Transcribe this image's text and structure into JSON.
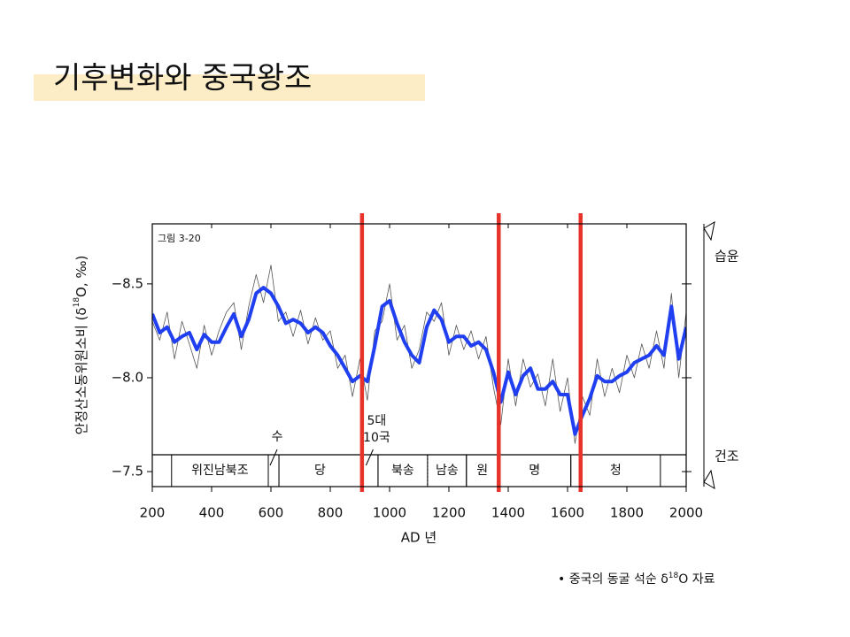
{
  "slide_title": "기후변화와 중국왕조",
  "chart_data": {
    "type": "line",
    "figure_label": "그림 3-20",
    "y_label": [
      "안정산소동위원소비 (δ",
      "18",
      "O, ‰)"
    ],
    "x_label": "AD 년",
    "x": [
      200,
      225,
      250,
      275,
      300,
      325,
      350,
      375,
      400,
      425,
      450,
      475,
      500,
      525,
      550,
      575,
      600,
      625,
      650,
      675,
      700,
      725,
      750,
      775,
      800,
      825,
      850,
      875,
      900,
      925,
      950,
      975,
      1000,
      1025,
      1050,
      1075,
      1100,
      1125,
      1150,
      1175,
      1200,
      1225,
      1250,
      1275,
      1300,
      1325,
      1350,
      1375,
      1400,
      1425,
      1450,
      1475,
      1500,
      1525,
      1550,
      1575,
      1600,
      1625,
      1650,
      1675,
      1700,
      1725,
      1750,
      1775,
      1800,
      1825,
      1850,
      1875,
      1900,
      1925,
      1950,
      1975,
      2000
    ],
    "series": [
      {
        "color": "#555555",
        "width": 0.8,
        "values": [
          -8.3,
          -8.2,
          -8.35,
          -8.1,
          -8.3,
          -8.18,
          -8.05,
          -8.28,
          -8.12,
          -8.25,
          -8.35,
          -8.4,
          -8.15,
          -8.38,
          -8.55,
          -8.4,
          -8.6,
          -8.3,
          -8.35,
          -8.22,
          -8.36,
          -8.18,
          -8.32,
          -8.2,
          -8.25,
          -8.05,
          -8.12,
          -7.9,
          -8.1,
          -7.88,
          -8.25,
          -8.3,
          -8.5,
          -8.2,
          -8.28,
          -8.05,
          -8.15,
          -8.35,
          -8.3,
          -8.4,
          -8.12,
          -8.28,
          -8.15,
          -8.25,
          -8.1,
          -8.22,
          -7.95,
          -7.75,
          -8.1,
          -7.85,
          -8.1,
          -7.95,
          -8.02,
          -7.85,
          -8.1,
          -7.82,
          -8.0,
          -7.65,
          -7.9,
          -7.8,
          -8.1,
          -7.9,
          -8.05,
          -7.92,
          -8.12,
          -8.0,
          -8.18,
          -8.05,
          -8.25,
          -8.05,
          -8.45,
          -8.0,
          -8.35
        ]
      },
      {
        "color": "#1f3ff0",
        "width": 4,
        "values": [
          -8.34,
          -8.24,
          -8.27,
          -8.19,
          -8.22,
          -8.24,
          -8.15,
          -8.23,
          -8.19,
          -8.19,
          -8.27,
          -8.34,
          -8.22,
          -8.31,
          -8.45,
          -8.48,
          -8.45,
          -8.38,
          -8.29,
          -8.31,
          -8.29,
          -8.24,
          -8.27,
          -8.24,
          -8.17,
          -8.12,
          -8.05,
          -7.98,
          -8.01,
          -7.98,
          -8.17,
          -8.38,
          -8.41,
          -8.29,
          -8.19,
          -8.12,
          -8.08,
          -8.27,
          -8.36,
          -8.31,
          -8.19,
          -8.22,
          -8.22,
          -8.17,
          -8.19,
          -8.15,
          -8.03,
          -7.87,
          -8.03,
          -7.91,
          -8.01,
          -8.05,
          -7.94,
          -7.94,
          -7.98,
          -7.91,
          -7.91,
          -7.7,
          -7.8,
          -7.89,
          -8.01,
          -7.98,
          -7.98,
          -8.01,
          -8.03,
          -8.08,
          -8.1,
          -8.12,
          -8.17,
          -8.12,
          -8.38,
          -8.1,
          -8.27
        ]
      }
    ],
    "xlim": [
      200,
      2000
    ],
    "xticks": [
      200,
      400,
      600,
      800,
      1000,
      1200,
      1400,
      1600,
      1800,
      2000
    ],
    "ylim": [
      -8.82,
      -7.42
    ],
    "y_inverted": true,
    "yticks": [
      {
        "value": -8.5,
        "label": "−8.5"
      },
      {
        "value": -8.0,
        "label": "−8.0"
      },
      {
        "value": -7.5,
        "label": "−7.5"
      }
    ],
    "right_labels": {
      "top": "습윤",
      "bottom": "건조"
    },
    "highlight_x": [
      907,
      1368,
      1644
    ],
    "highlight_color": "#e8332a",
    "periods": [
      {
        "label": "위진남북조",
        "start": 265,
        "end": 591
      },
      {
        "label": "수",
        "start": 591,
        "end": 627,
        "callout": true
      },
      {
        "label": "당",
        "start": 627,
        "end": 904
      },
      {
        "label": [
          "5대",
          "10국"
        ],
        "start": 904,
        "end": 961,
        "callout": true
      },
      {
        "label": "북송",
        "start": 961,
        "end": 1128
      },
      {
        "label": "남송",
        "start": 1128,
        "end": 1259,
        "dotted_start": true
      },
      {
        "label": "원",
        "start": 1259,
        "end": 1366
      },
      {
        "label": "명",
        "start": 1366,
        "end": 1611
      },
      {
        "label": "청",
        "start": 1611,
        "end": 1913
      }
    ]
  },
  "footnote": [
    "•  중국의 동굴 석순 δ",
    "18",
    "O 자료"
  ]
}
